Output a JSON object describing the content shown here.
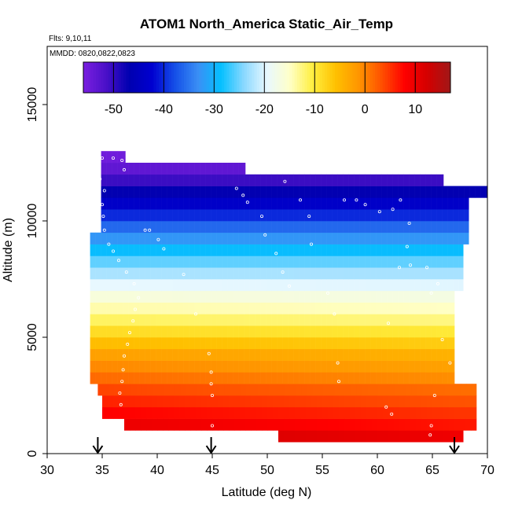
{
  "chart_data": {
    "type": "heatmap",
    "title": "ATOM1 North_America Static_Air_Temp",
    "flights_text": "Flts: 9,10,11",
    "mmdd_text": "MMDD: 0820,0822,0823",
    "xlabel": "Latitude (deg N)",
    "ylabel": "Altitude (m)",
    "xlim": [
      30,
      70
    ],
    "ylim": [
      0,
      17500
    ],
    "x_ticks": [
      "30",
      "35",
      "40",
      "45",
      "50",
      "55",
      "60",
      "65",
      "70"
    ],
    "y_ticks": [
      "0",
      "5000",
      "10000",
      "15000"
    ],
    "colorbar": {
      "range": [
        -56,
        17
      ],
      "ticks": [
        "-50",
        "-40",
        "-30",
        "-20",
        "-10",
        "0",
        "10"
      ],
      "colors": [
        "#7a1fe0",
        "#4a10c8",
        "#0000b0",
        "#0000d0",
        "#1550e8",
        "#3a8ff5",
        "#05c0ff",
        "#8ad8ff",
        "#e8f8ff",
        "#ffffc8",
        "#ffef3f",
        "#ffc000",
        "#ff9500",
        "#ff5000",
        "#ff0000",
        "#d40000",
        "#a01818"
      ]
    },
    "arrows_x": [
      34.6,
      44.9,
      67.0
    ],
    "temperature_profile": {
      "altitude_m": [
        500,
        1000,
        1500,
        2000,
        2500,
        3000,
        3500,
        4000,
        4500,
        5000,
        5500,
        6000,
        6500,
        7000,
        7500,
        8000,
        8500,
        9000,
        9500,
        10000,
        10500,
        11000,
        11500,
        12000,
        12500
      ],
      "temp_c": [
        15,
        11,
        9,
        7,
        5,
        3,
        0,
        -1,
        -4,
        -7,
        -10,
        -13,
        -15,
        -18,
        -21,
        -24,
        -27,
        -31,
        -34,
        -38,
        -42,
        -45,
        -49,
        -52,
        -55
      ]
    },
    "coverage": {
      "lat_min": 33.9,
      "lat_max_rows": [
        [
          0,
          67.8
        ],
        [
          1000,
          69.0
        ],
        [
          3000,
          67.0
        ],
        [
          7000,
          67.8
        ],
        [
          9000,
          68.3
        ],
        [
          10000,
          68.3
        ],
        [
          11000,
          70.0
        ],
        [
          11500,
          66.0
        ],
        [
          12000,
          48.0
        ],
        [
          12500,
          37.1
        ]
      ]
    },
    "flight_track_samples": [
      [
        35.0,
        12700
      ],
      [
        36.0,
        12700
      ],
      [
        36.8,
        12600
      ],
      [
        37.0,
        12200
      ],
      [
        34.8,
        11800
      ],
      [
        35.2,
        11300
      ],
      [
        35.0,
        10700
      ],
      [
        35.1,
        10200
      ],
      [
        35.2,
        9600
      ],
      [
        35.6,
        9000
      ],
      [
        36.0,
        8700
      ],
      [
        36.5,
        8300
      ],
      [
        37.2,
        7800
      ],
      [
        37.9,
        7300
      ],
      [
        38.3,
        6700
      ],
      [
        38.0,
        6200
      ],
      [
        37.8,
        5700
      ],
      [
        37.5,
        5200
      ],
      [
        37.3,
        4700
      ],
      [
        37.0,
        4200
      ],
      [
        36.9,
        3600
      ],
      [
        36.8,
        3100
      ],
      [
        36.6,
        2600
      ],
      [
        36.7,
        2100
      ],
      [
        38.9,
        9600
      ],
      [
        39.3,
        9600
      ],
      [
        40.1,
        9200
      ],
      [
        40.6,
        8800
      ],
      [
        42.4,
        7700
      ],
      [
        43.5,
        6000
      ],
      [
        44.7,
        4300
      ],
      [
        44.9,
        3500
      ],
      [
        44.9,
        3000
      ],
      [
        45.0,
        2500
      ],
      [
        45.0,
        1200
      ],
      [
        47.2,
        11400
      ],
      [
        47.8,
        11100
      ],
      [
        48.2,
        10800
      ],
      [
        49.5,
        10200
      ],
      [
        49.8,
        9400
      ],
      [
        50.8,
        8600
      ],
      [
        51.4,
        7800
      ],
      [
        52.0,
        7200
      ],
      [
        51.6,
        11700
      ],
      [
        53.0,
        10900
      ],
      [
        53.8,
        10200
      ],
      [
        54.0,
        9000
      ],
      [
        55.5,
        6900
      ],
      [
        56.1,
        6000
      ],
      [
        56.4,
        3900
      ],
      [
        56.5,
        3100
      ],
      [
        57.0,
        10900
      ],
      [
        58.1,
        10900
      ],
      [
        58.9,
        10700
      ],
      [
        60.2,
        10400
      ],
      [
        61.4,
        10500
      ],
      [
        62.1,
        10900
      ],
      [
        62.9,
        9900
      ],
      [
        62.7,
        8900
      ],
      [
        62.0,
        8000
      ],
      [
        63.0,
        8100
      ],
      [
        64.5,
        8000
      ],
      [
        65.5,
        7300
      ],
      [
        64.9,
        6900
      ],
      [
        65.9,
        4900
      ],
      [
        66.6,
        3900
      ],
      [
        65.2,
        2500
      ],
      [
        64.9,
        1200
      ],
      [
        64.8,
        800
      ],
      [
        68.5,
        10500
      ],
      [
        69.5,
        10800
      ],
      [
        60.8,
        2000
      ],
      [
        61.3,
        1700
      ],
      [
        61.0,
        5600
      ]
    ]
  }
}
